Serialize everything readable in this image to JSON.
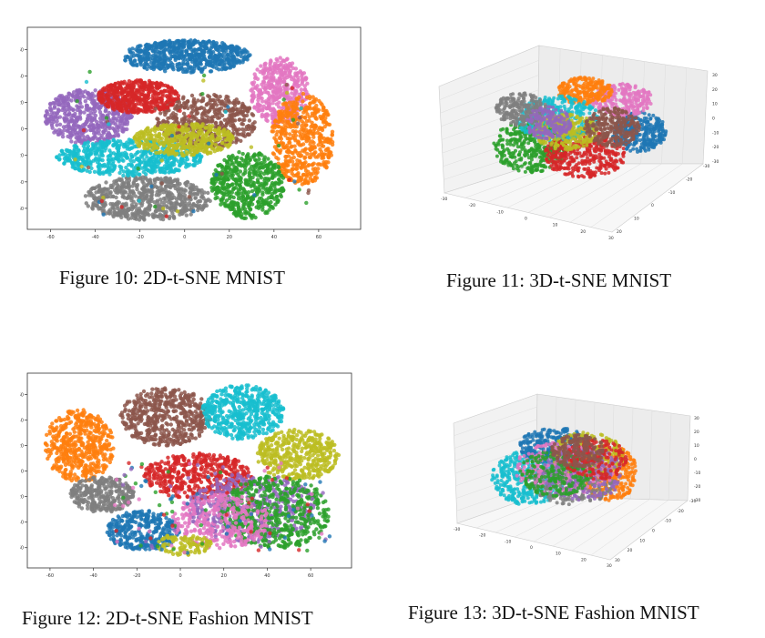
{
  "figures": [
    {
      "id": "fig10",
      "caption": "Figure 10: 2D-t-SNE MNIST",
      "type": "2d",
      "x_ticks": [
        "-60",
        "-40",
        "-20",
        "0",
        "20",
        "40",
        "60"
      ],
      "y_ticks": [
        "60",
        "40",
        "20",
        "0",
        "-20",
        "-40",
        "-60"
      ],
      "colors": {
        "blue": "#1f77b4",
        "orange": "#ff7f0e",
        "green": "#2ca02c",
        "red": "#d62728",
        "purple": "#9467bd",
        "brown": "#8c564b",
        "pink": "#e377c2",
        "gray": "#7f7f7f",
        "olive": "#bcbd22",
        "cyan": "#17becf"
      }
    },
    {
      "id": "fig11",
      "caption": "Figure 11: 3D-t-SNE MNIST",
      "type": "3d",
      "x_ticks": [
        "-30",
        "-20",
        "-10",
        "0",
        "10",
        "20",
        "30"
      ],
      "y_ticks": [
        "-30",
        "-20",
        "-10",
        "0",
        "10",
        "20"
      ],
      "z_ticks": [
        "30",
        "20",
        "10",
        "0",
        "-10",
        "-20",
        "-30"
      ]
    },
    {
      "id": "fig12",
      "caption": "Figure 12: 2D-t-SNE Fashion MNIST",
      "type": "2d",
      "x_ticks": [
        "-60",
        "-40",
        "-20",
        "0",
        "20",
        "40",
        "60"
      ],
      "y_ticks": [
        "60",
        "40",
        "20",
        "0",
        "-20",
        "-40",
        "-60"
      ]
    },
    {
      "id": "fig13",
      "caption": "Figure 13: 3D-t-SNE Fashion MNIST",
      "type": "3d",
      "x_ticks": [
        "-30",
        "-20",
        "-10",
        "0",
        "10",
        "20",
        "30"
      ],
      "y_ticks": [
        "-30",
        "-20",
        "-10",
        "0",
        "10",
        "20",
        "30"
      ],
      "z_ticks": [
        "30",
        "20",
        "10",
        "0",
        "-10",
        "-20",
        "-30"
      ]
    }
  ]
}
